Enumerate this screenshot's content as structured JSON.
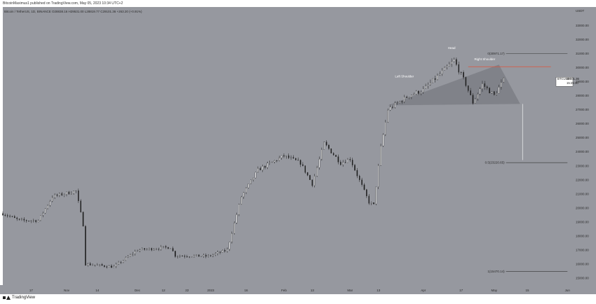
{
  "header": {
    "published_line": "BitcoinMaximus1 published on TradingView.com, May 05, 2023 10:34 UTC+2"
  },
  "footer": {
    "brand": "TradingView"
  },
  "colors": {
    "background": "#96989f",
    "bar": "#ffffff",
    "axis_text": "#2b2b2b",
    "resistance": "#e0523a",
    "fib_line": "#333333",
    "triangle": "#6f7177"
  },
  "chart_data": {
    "type": "candlestick",
    "legend": "Bitcoin / TetherUS, 1D, BINANCE  O28838.16  H29531.00  L28819.77  C29101.36  +263.20 (+0.91%)",
    "currency": "USDT",
    "ylim": [
      14500,
      34300
    ],
    "y_ticks": [
      15000,
      16000,
      17000,
      18000,
      19000,
      20000,
      21000,
      22000,
      23000,
      24000,
      25000,
      26000,
      27000,
      28000,
      29000,
      30000,
      31000,
      32000,
      33000
    ],
    "x_ticks": [
      "17",
      "Nov",
      "14",
      "Dec",
      "12",
      "22",
      "2023",
      "16",
      "Feb",
      "13",
      "Mar",
      "13",
      "Apr",
      "17",
      "May",
      "15",
      "Jun"
    ],
    "x_range": [
      "2022-10-05",
      "2023-06-03"
    ],
    "tick_dates": [
      "2022-10-17",
      "2022-11-01",
      "2022-11-14",
      "2022-12-01",
      "2022-12-12",
      "2022-12-22",
      "2023-01-01",
      "2023-01-16",
      "2023-02-01",
      "2023-02-13",
      "2023-03-01",
      "2023-03-13",
      "2023-04-01",
      "2023-04-17",
      "2023-05-01",
      "2023-05-15",
      "2023-06-01"
    ],
    "price_label": {
      "symbol": "BTCUSDT",
      "price": "29101.36",
      "countdown": "15:25:30",
      "value": 29101.36
    },
    "annotations": [
      {
        "text": "Head",
        "price": 31300,
        "date": "2023-04-13"
      },
      {
        "text": "Right Shoulder",
        "price": 30500,
        "date": "2023-04-27"
      },
      {
        "text": "Left Shoulder",
        "price": 29300,
        "date": "2023-03-24"
      }
    ],
    "resistance": {
      "price": 30050,
      "from": "2023-04-20",
      "to": "2023-05-25"
    },
    "fib_levels": [
      {
        "label": "0(30971.17)",
        "value": 30971.17
      },
      {
        "label": "0.5(23220.65)",
        "value": 23220.65
      },
      {
        "label": "1(15470.14)",
        "value": 15470.14
      }
    ],
    "fib_from": "2023-05-06",
    "fib_to": "2023-06-01",
    "projection": {
      "date": "2023-05-13",
      "from_price": 27400,
      "to_price": 23400
    },
    "triangle": [
      {
        "date": "2023-03-17",
        "price": 27300
      },
      {
        "date": "2023-05-03",
        "price": 30200
      },
      {
        "date": "2023-05-12",
        "price": 27400
      }
    ],
    "anchors": [
      [
        "2022-10-05",
        19600
      ],
      [
        "2022-10-12",
        19100
      ],
      [
        "2022-10-20",
        19100
      ],
      [
        "2022-10-26",
        20800
      ],
      [
        "2022-11-05",
        21200
      ],
      [
        "2022-11-08",
        18800
      ],
      [
        "2022-11-09",
        16000
      ],
      [
        "2022-11-21",
        15800
      ],
      [
        "2022-12-01",
        17000
      ],
      [
        "2022-12-15",
        17200
      ],
      [
        "2022-12-17",
        16600
      ],
      [
        "2022-12-31",
        16550
      ],
      [
        "2023-01-08",
        17000
      ],
      [
        "2023-01-14",
        20800
      ],
      [
        "2023-01-21",
        22700
      ],
      [
        "2023-02-01",
        23700
      ],
      [
        "2023-02-08",
        23200
      ],
      [
        "2023-02-13",
        21700
      ],
      [
        "2023-02-18",
        24600
      ],
      [
        "2023-02-25",
        23200
      ],
      [
        "2023-03-01",
        23500
      ],
      [
        "2023-03-09",
        20400
      ],
      [
        "2023-03-11",
        20200
      ],
      [
        "2023-03-14",
        24300
      ],
      [
        "2023-03-17",
        27000
      ],
      [
        "2023-03-26",
        28000
      ],
      [
        "2023-04-01",
        28400
      ],
      [
        "2023-04-11",
        30000
      ],
      [
        "2023-04-14",
        30500
      ],
      [
        "2023-04-19",
        28800
      ],
      [
        "2023-04-22",
        27500
      ],
      [
        "2023-04-26",
        28800
      ],
      [
        "2023-05-01",
        28000
      ],
      [
        "2023-05-05",
        29101
      ]
    ]
  }
}
